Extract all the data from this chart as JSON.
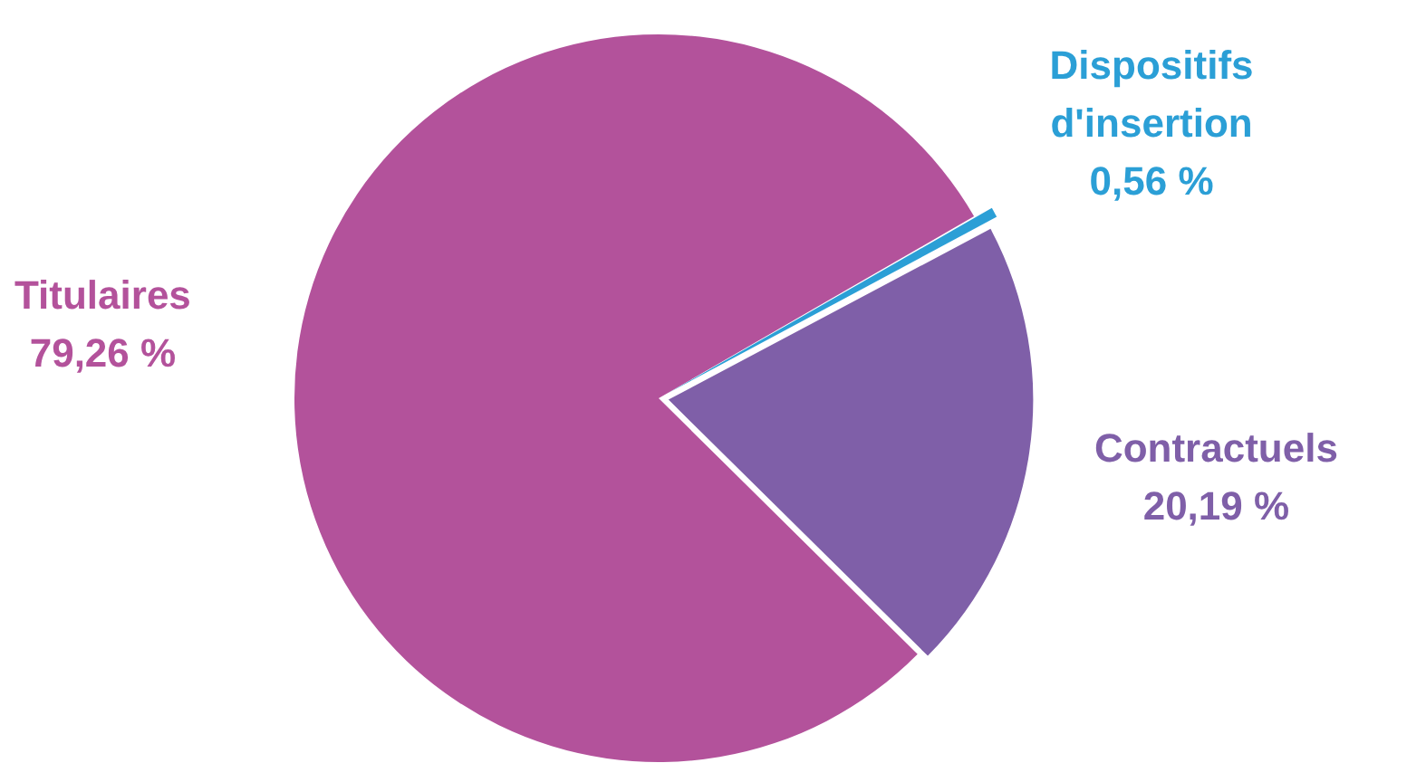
{
  "chart_data": {
    "type": "pie",
    "categories": [
      "Dispositifs d'insertion",
      "Contractuels",
      "Titulaires"
    ],
    "values": [
      0.56,
      20.19,
      79.26
    ],
    "colors": [
      "#2b9fd6",
      "#7f5fa8",
      "#b3529b"
    ],
    "value_labels": [
      "0,56 %",
      "20,19 %",
      "79,26 %"
    ],
    "legend": false
  }
}
